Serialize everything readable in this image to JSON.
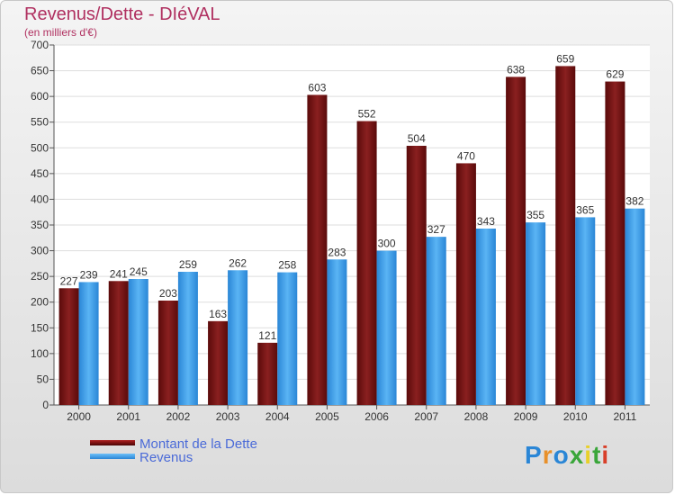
{
  "chart_data": {
    "type": "bar",
    "title": "Revenus/Dette - DIéVAL",
    "subtitle": "(en milliers d'€)",
    "categories": [
      "2000",
      "2001",
      "2002",
      "2003",
      "2004",
      "2005",
      "2006",
      "2007",
      "2008",
      "2009",
      "2010",
      "2011"
    ],
    "series": [
      {
        "name": "Montant de la Dette",
        "color": "#7a1414",
        "values": [
          227,
          241,
          203,
          163,
          121,
          603,
          552,
          504,
          470,
          638,
          659,
          629
        ]
      },
      {
        "name": "Revenus",
        "color": "#3e9ee6",
        "values": [
          239,
          245,
          259,
          262,
          258,
          283,
          300,
          327,
          343,
          355,
          365,
          382
        ]
      }
    ],
    "ylim": [
      0,
      700
    ],
    "yticks": [
      0,
      50,
      100,
      150,
      200,
      250,
      300,
      350,
      400,
      450,
      500,
      550,
      600,
      650,
      700
    ],
    "grid": true,
    "legend_position": "bottom-left"
  },
  "logo": {
    "text": "Proxiti"
  }
}
